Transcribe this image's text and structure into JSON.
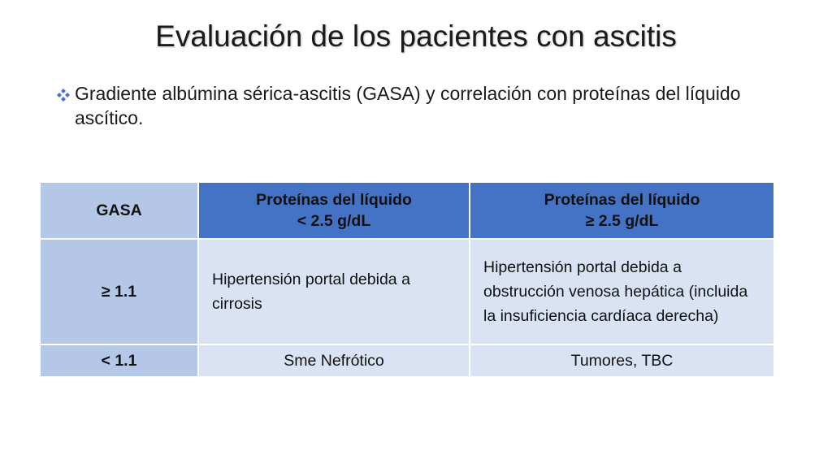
{
  "slide": {
    "title": "Evaluación de los pacientes con ascitis",
    "bullet_text": "Gradiente albúmina sérica-ascitis (GASA) y correlación con proteínas del líquido ascítico.",
    "bullet_icon": "diamond-bullet-icon",
    "accent_color": "#4472c4"
  },
  "table": {
    "headers": {
      "col1": "GASA",
      "col2_line1": "Proteínas del líquido",
      "col2_line2": "< 2.5 g/dL",
      "col3_line1": "Proteínas del líquido",
      "col3_line2": "≥ 2.5 g/dL"
    },
    "rows": [
      {
        "gasa": "≥ 1.1",
        "low_protein": "Hipertensión portal debida a cirrosis",
        "high_protein": "Hipertensión portal debida a obstrucción  venosa hepática (incluida la insuficiencia cardíaca derecha)"
      },
      {
        "gasa": "< 1.1",
        "low_protein": "Sme Nefrótico",
        "high_protein": "Tumores, TBC"
      }
    ]
  }
}
